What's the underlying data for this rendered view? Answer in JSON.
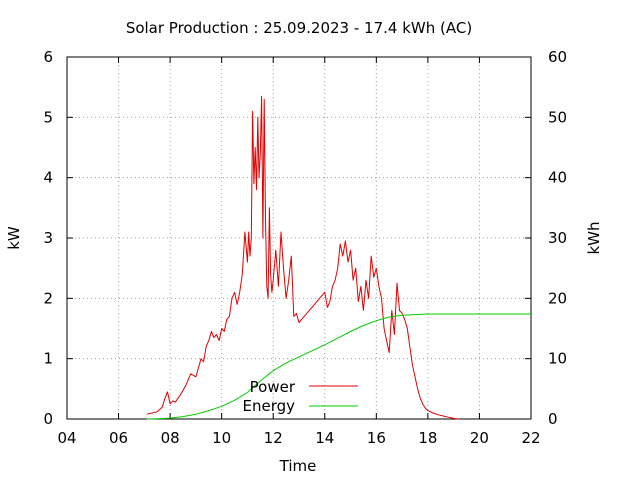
{
  "chart_data": {
    "type": "line",
    "title": "Solar Production : 25.09.2023 - 17.4 kWh (AC)",
    "xlabel": "Time",
    "ylabel": "kW",
    "y2label": "kWh",
    "xlim": [
      4,
      22
    ],
    "ylim": [
      0,
      6
    ],
    "y2lim": [
      0,
      60
    ],
    "x_ticks": [
      4,
      6,
      8,
      10,
      12,
      14,
      16,
      18,
      20,
      22
    ],
    "x_tick_labels": [
      "04",
      "06",
      "08",
      "10",
      "12",
      "14",
      "16",
      "18",
      "20",
      "22"
    ],
    "y_ticks": [
      0,
      1,
      2,
      3,
      4,
      5,
      6
    ],
    "y_tick_labels": [
      "0",
      "1",
      "2",
      "3",
      "4",
      "5",
      "6"
    ],
    "y2_ticks": [
      0,
      10,
      20,
      30,
      40,
      50,
      60
    ],
    "y2_tick_labels": [
      "0",
      "10",
      "20",
      "30",
      "40",
      "50",
      "60"
    ],
    "grid": true,
    "legend_position": "lower-center",
    "series": [
      {
        "name": "Power",
        "axis": "left",
        "color": "#e00000",
        "x": [
          7.1,
          7.3,
          7.5,
          7.7,
          7.8,
          7.9,
          8.0,
          8.1,
          8.2,
          8.4,
          8.6,
          8.8,
          9.0,
          9.1,
          9.2,
          9.3,
          9.4,
          9.5,
          9.6,
          9.7,
          9.8,
          9.9,
          10.0,
          10.1,
          10.2,
          10.3,
          10.4,
          10.5,
          10.6,
          10.7,
          10.8,
          10.9,
          11.0,
          11.05,
          11.1,
          11.15,
          11.2,
          11.25,
          11.3,
          11.35,
          11.4,
          11.45,
          11.5,
          11.55,
          11.6,
          11.65,
          11.7,
          11.75,
          11.8,
          11.85,
          11.9,
          11.95,
          12.0,
          12.1,
          12.2,
          12.3,
          12.4,
          12.5,
          12.6,
          12.7,
          12.8,
          12.9,
          13.0,
          13.2,
          13.4,
          13.6,
          13.8,
          14.0,
          14.1,
          14.2,
          14.3,
          14.4,
          14.5,
          14.6,
          14.7,
          14.8,
          14.9,
          15.0,
          15.1,
          15.2,
          15.3,
          15.4,
          15.5,
          15.6,
          15.7,
          15.8,
          15.9,
          16.0,
          16.1,
          16.2,
          16.3,
          16.4,
          16.5,
          16.6,
          16.7,
          16.8,
          16.9,
          17.0,
          17.1,
          17.2,
          17.3,
          17.4,
          17.5,
          17.6,
          17.7,
          17.8,
          17.9,
          18.0,
          18.2,
          18.4,
          18.6,
          18.8,
          19.0,
          19.2
        ],
        "values": [
          0.08,
          0.1,
          0.12,
          0.2,
          0.35,
          0.45,
          0.25,
          0.3,
          0.28,
          0.4,
          0.55,
          0.75,
          0.7,
          0.85,
          1.0,
          0.95,
          1.2,
          1.3,
          1.45,
          1.35,
          1.4,
          1.3,
          1.5,
          1.45,
          1.65,
          1.7,
          2.0,
          2.1,
          1.9,
          2.1,
          2.4,
          3.1,
          2.6,
          3.1,
          2.7,
          3.0,
          5.1,
          3.9,
          4.5,
          3.8,
          5.0,
          4.0,
          4.4,
          5.35,
          3.0,
          5.3,
          3.3,
          2.2,
          2.0,
          3.5,
          2.4,
          2.1,
          2.3,
          2.8,
          2.2,
          3.1,
          2.5,
          2.0,
          2.3,
          2.7,
          1.7,
          1.75,
          1.6,
          1.7,
          1.8,
          1.9,
          2.0,
          2.1,
          1.85,
          1.95,
          2.2,
          2.3,
          2.5,
          2.9,
          2.7,
          2.95,
          2.6,
          2.8,
          2.3,
          2.5,
          1.95,
          2.2,
          1.8,
          2.3,
          2.0,
          2.7,
          2.35,
          2.5,
          2.2,
          2.0,
          1.5,
          1.3,
          1.1,
          1.8,
          1.4,
          2.25,
          1.8,
          1.75,
          1.65,
          1.5,
          1.2,
          0.9,
          0.7,
          0.5,
          0.35,
          0.25,
          0.18,
          0.14,
          0.1,
          0.07,
          0.05,
          0.03,
          0.01,
          0.0
        ]
      },
      {
        "name": "Energy",
        "axis": "right",
        "color": "#00cc00",
        "x": [
          7.1,
          7.5,
          8.0,
          8.5,
          9.0,
          9.5,
          10.0,
          10.5,
          11.0,
          11.5,
          12.0,
          12.5,
          13.0,
          13.5,
          14.0,
          14.5,
          15.0,
          15.5,
          16.0,
          16.5,
          17.0,
          17.5,
          18.0,
          18.5,
          19.0,
          19.5,
          20.0,
          21.0,
          22.0
        ],
        "values": [
          0.0,
          0.05,
          0.15,
          0.4,
          0.8,
          1.4,
          2.1,
          3.1,
          4.4,
          6.3,
          8.0,
          9.3,
          10.3,
          11.3,
          12.3,
          13.4,
          14.5,
          15.5,
          16.3,
          16.9,
          17.2,
          17.3,
          17.4,
          17.4,
          17.4,
          17.4,
          17.4,
          17.4,
          17.4
        ]
      }
    ]
  }
}
